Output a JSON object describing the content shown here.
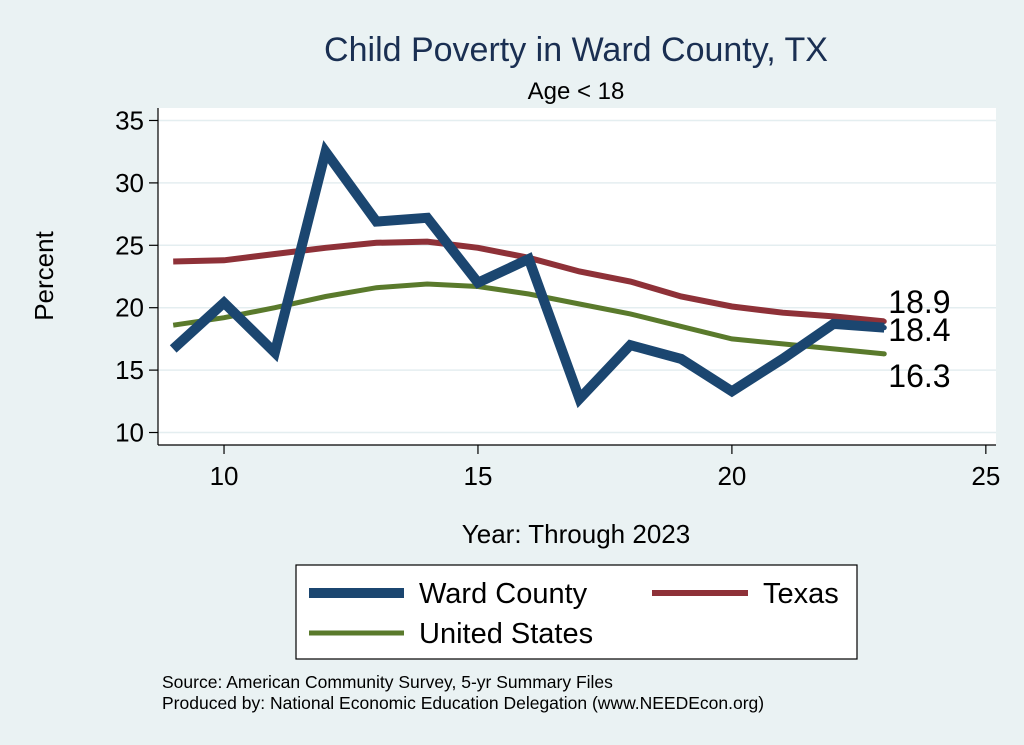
{
  "chart_data": {
    "type": "line",
    "title": "Child Poverty in Ward County, TX",
    "subtitle": "Age < 18",
    "xlabel": "Year: Through 2023",
    "ylabel": "Percent",
    "xlim": [
      8.7,
      25.2
    ],
    "ylim": [
      9,
      36
    ],
    "xticks": [
      10,
      15,
      20,
      25
    ],
    "yticks": [
      10,
      15,
      20,
      25,
      30,
      35
    ],
    "grid": true,
    "legend_position": "bottom",
    "x": [
      9,
      10,
      11,
      12,
      13,
      14,
      15,
      16,
      17,
      18,
      19,
      20,
      21,
      22,
      23
    ],
    "series": [
      {
        "name": "Ward County",
        "color": "#1b4670",
        "width": 10,
        "values": [
          16.7,
          20.4,
          16.4,
          32.5,
          26.9,
          27.2,
          22.0,
          23.9,
          12.7,
          17.0,
          15.9,
          13.3,
          15.9,
          18.7,
          18.4
        ],
        "end_label": "18.4"
      },
      {
        "name": "Texas",
        "color": "#8e3138",
        "width": 6,
        "values": [
          23.7,
          23.8,
          24.3,
          24.8,
          25.2,
          25.3,
          24.8,
          24.0,
          22.9,
          22.1,
          20.9,
          20.1,
          19.6,
          19.3,
          18.9
        ],
        "end_label": "18.9"
      },
      {
        "name": "United States",
        "color": "#5a7a2c",
        "width": 5,
        "values": [
          18.6,
          19.2,
          20.0,
          20.9,
          21.6,
          21.9,
          21.7,
          21.1,
          20.3,
          19.5,
          18.5,
          17.5,
          17.1,
          16.7,
          16.3
        ],
        "end_label": "16.3"
      }
    ],
    "source_lines": [
      "Source: American Community Survey, 5-yr Summary Files",
      "Produced by: National Economic Education Delegation (www.NEEDEcon.org)"
    ]
  }
}
